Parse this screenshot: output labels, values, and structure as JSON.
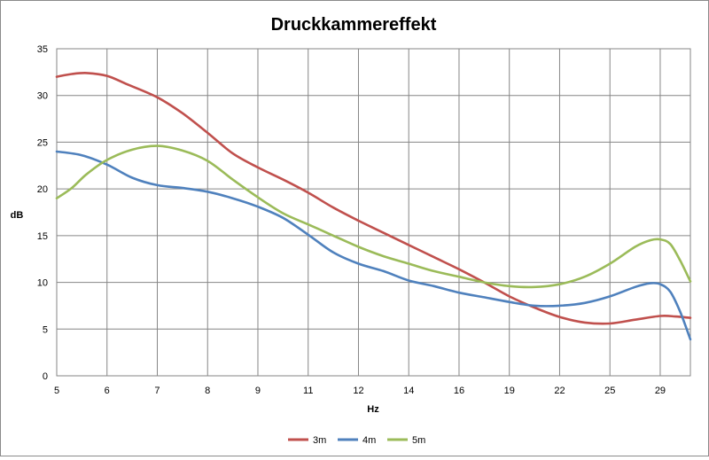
{
  "chart_data": {
    "type": "line",
    "title": "Druckkammereffekt",
    "xlabel": "Hz",
    "ylabel": "dB",
    "categories": [
      "5",
      "6",
      "7",
      "8",
      "9",
      "11",
      "12",
      "14",
      "16",
      "19",
      "22",
      "25",
      "29"
    ],
    "ylim": [
      0,
      35
    ],
    "yticks": [
      0,
      5,
      10,
      15,
      20,
      25,
      30,
      35
    ],
    "grid": true,
    "legend_position": "bottom",
    "series": [
      {
        "name": "3m",
        "color": "#c0504d",
        "points": [
          [
            0,
            32.0
          ],
          [
            0.3,
            32.3
          ],
          [
            0.6,
            32.4
          ],
          [
            1.0,
            32.1
          ],
          [
            1.4,
            31.2
          ],
          [
            2.0,
            29.8
          ],
          [
            2.5,
            28.1
          ],
          [
            3.0,
            26.0
          ],
          [
            3.5,
            23.8
          ],
          [
            4.0,
            22.3
          ],
          [
            4.5,
            21.0
          ],
          [
            5.0,
            19.6
          ],
          [
            5.5,
            18.0
          ],
          [
            6.0,
            16.6
          ],
          [
            6.5,
            15.3
          ],
          [
            7.0,
            14.0
          ],
          [
            7.5,
            12.7
          ],
          [
            8.0,
            11.4
          ],
          [
            8.5,
            10.0
          ],
          [
            9.0,
            8.5
          ],
          [
            9.5,
            7.3
          ],
          [
            10.0,
            6.3
          ],
          [
            10.5,
            5.7
          ],
          [
            11.0,
            5.6
          ],
          [
            11.5,
            6.0
          ],
          [
            12.0,
            6.4
          ],
          [
            12.3,
            6.35
          ],
          [
            12.6,
            6.2
          ]
        ]
      },
      {
        "name": "4m",
        "color": "#4f81bd",
        "points": [
          [
            0,
            24.0
          ],
          [
            0.5,
            23.6
          ],
          [
            1.0,
            22.6
          ],
          [
            1.5,
            21.2
          ],
          [
            2.0,
            20.4
          ],
          [
            2.5,
            20.1
          ],
          [
            3.0,
            19.7
          ],
          [
            3.5,
            19.0
          ],
          [
            4.0,
            18.1
          ],
          [
            4.5,
            16.9
          ],
          [
            5.0,
            15.1
          ],
          [
            5.5,
            13.2
          ],
          [
            6.0,
            12.0
          ],
          [
            6.5,
            11.2
          ],
          [
            7.0,
            10.2
          ],
          [
            7.5,
            9.6
          ],
          [
            8.0,
            8.9
          ],
          [
            8.5,
            8.4
          ],
          [
            9.0,
            7.9
          ],
          [
            9.5,
            7.5
          ],
          [
            10.0,
            7.5
          ],
          [
            10.5,
            7.8
          ],
          [
            11.0,
            8.5
          ],
          [
            11.5,
            9.5
          ],
          [
            11.8,
            9.9
          ],
          [
            12.0,
            9.8
          ],
          [
            12.2,
            9.0
          ],
          [
            12.4,
            6.8
          ],
          [
            12.6,
            3.9
          ]
        ]
      },
      {
        "name": "5m",
        "color": "#9bbb59",
        "points": [
          [
            0,
            19.0
          ],
          [
            0.3,
            20.1
          ],
          [
            0.6,
            21.6
          ],
          [
            1.0,
            23.1
          ],
          [
            1.5,
            24.2
          ],
          [
            2.0,
            24.6
          ],
          [
            2.5,
            24.1
          ],
          [
            3.0,
            23.0
          ],
          [
            3.5,
            21.0
          ],
          [
            4.0,
            19.1
          ],
          [
            4.5,
            17.4
          ],
          [
            5.0,
            16.2
          ],
          [
            5.5,
            15.0
          ],
          [
            6.0,
            13.8
          ],
          [
            6.5,
            12.8
          ],
          [
            7.0,
            12.0
          ],
          [
            7.5,
            11.2
          ],
          [
            8.0,
            10.6
          ],
          [
            8.5,
            10.0
          ],
          [
            9.0,
            9.6
          ],
          [
            9.5,
            9.5
          ],
          [
            10.0,
            9.8
          ],
          [
            10.5,
            10.6
          ],
          [
            11.0,
            12.0
          ],
          [
            11.5,
            13.8
          ],
          [
            11.8,
            14.5
          ],
          [
            12.0,
            14.6
          ],
          [
            12.2,
            14.1
          ],
          [
            12.4,
            12.3
          ],
          [
            12.6,
            10.1
          ]
        ]
      }
    ]
  }
}
